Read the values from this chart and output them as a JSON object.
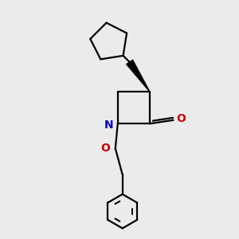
{
  "bg_color": "#ebebeb",
  "bond_color": "#000000",
  "N_color": "#0000cd",
  "O_color": "#cc0000",
  "line_width": 1.6,
  "fig_size": [
    3.0,
    3.0
  ],
  "dpi": 100,
  "xlim": [
    0,
    10
  ],
  "ylim": [
    0,
    10
  ]
}
